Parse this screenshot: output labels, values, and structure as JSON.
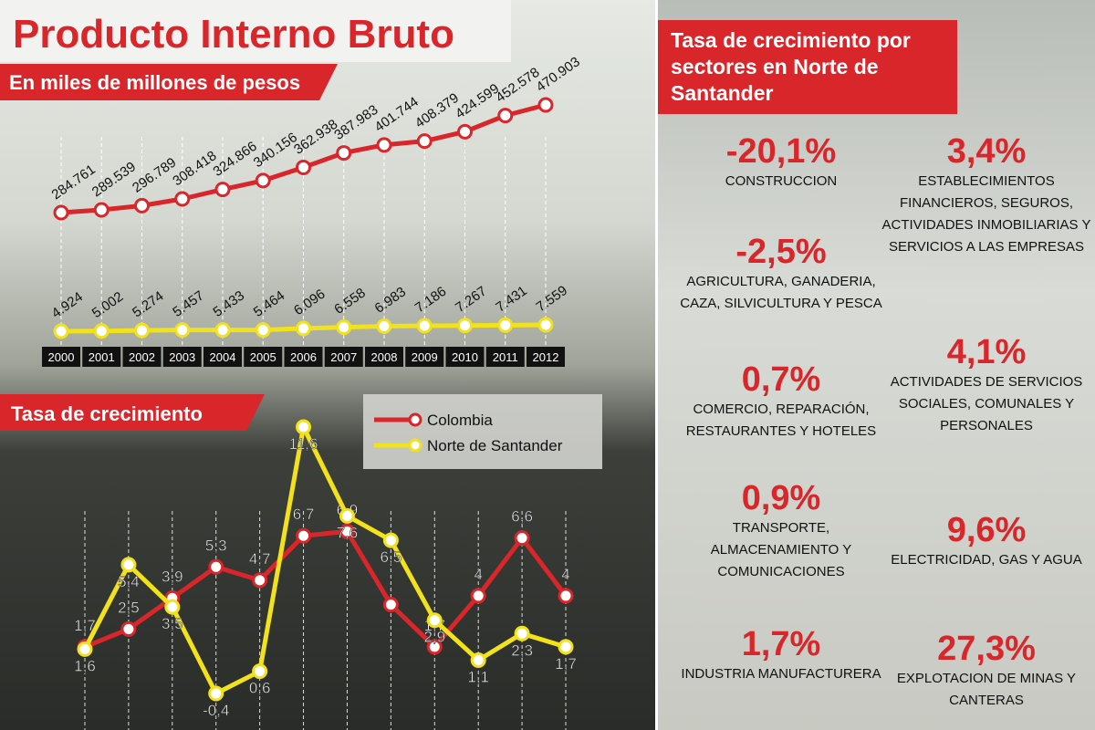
{
  "chart_data": [
    {
      "type": "line",
      "title": "Producto Interno Bruto",
      "subtitle": "En miles de millones de pesos",
      "categories": [
        "2000",
        "2001",
        "2002",
        "2003",
        "2004",
        "2005",
        "2006",
        "2007",
        "2008",
        "2009",
        "2010",
        "2011",
        "2012"
      ],
      "series": [
        {
          "color": "#d9262b",
          "values": [
            284761,
            289539,
            296789,
            308418,
            324866,
            340156,
            362938,
            387983,
            401744,
            408379,
            424599,
            452578,
            470903
          ],
          "value_labels": [
            "284.761",
            "289.539",
            "296.789",
            "308.418",
            "324.866",
            "340.156",
            "362.938",
            "387.983",
            "401.744",
            "408.379",
            "424.599",
            "452.578",
            "470.903"
          ]
        },
        {
          "color": "#f2e21b",
          "values": [
            4924,
            5002,
            5274,
            5457,
            5433,
            5464,
            6096,
            6558,
            6983,
            7186,
            7267,
            7431,
            7559
          ],
          "value_labels": [
            "4.924",
            "5.002",
            "5.274",
            "5.457",
            "5.433",
            "5.464",
            "6.096",
            "6.558",
            "6.983",
            "7.186",
            "7.267",
            "7.431",
            "7.559"
          ]
        }
      ]
    },
    {
      "type": "line",
      "title": "Tasa de crecimiento",
      "categories": [
        null,
        null,
        null,
        null,
        null,
        null,
        null,
        null,
        null,
        null,
        null,
        null
      ],
      "series": [
        {
          "name": "Colombia",
          "color": "#d9262b",
          "values": [
            1.7,
            2.5,
            3.9,
            5.3,
            4.7,
            6.7,
            6.9,
            3.6,
            1.7,
            4,
            6.6,
            4
          ],
          "value_labels": [
            "1,7",
            "2,5",
            "3,9",
            "5,3",
            "4,7",
            "6,7",
            "6,9",
            null,
            "1,7",
            "4",
            "6,6",
            "4"
          ]
        },
        {
          "name": "Norte de Santander",
          "color": "#f2e21b",
          "values": [
            1.6,
            5.4,
            3.5,
            -0.4,
            0.6,
            11.6,
            7.6,
            6.5,
            2.9,
            1.1,
            2.3,
            1.7
          ],
          "value_labels": [
            "1,6",
            "5,4",
            "3,5",
            "-0,4",
            "0,6",
            "11,6",
            "7,6",
            "6,5",
            "2,9",
            "1,1",
            "2,3",
            "1,7"
          ]
        }
      ]
    }
  ],
  "sectors": {
    "title": "Tasa de crecimiento por sectores en Norte de Santander",
    "items": [
      {
        "rate": "-20,1%",
        "label": "CONSTRUCCION"
      },
      {
        "rate": "-2,5%",
        "label": "AGRICULTURA, GANADERIA, CAZA, SILVICULTURA Y PESCA"
      },
      {
        "rate": "0,7%",
        "label": "COMERCIO, REPARACIÓN, RESTAURANTES Y HOTELES"
      },
      {
        "rate": "0,9%",
        "label": "TRANSPORTE, ALMACENAMIENTO Y COMUNICACIONES"
      },
      {
        "rate": "1,7%",
        "label": "INDUSTRIA MANUFACTURERA"
      },
      {
        "rate": "3,4%",
        "label": "ESTABLECIMIENTOS FINANCIEROS, SEGUROS, ACTIVIDADES INMOBILIARIAS Y SERVICIOS A LAS EMPRESAS"
      },
      {
        "rate": "4,1%",
        "label": "ACTIVIDADES DE SERVICIOS SOCIALES, COMUNALES Y PERSONALES"
      },
      {
        "rate": "9,6%",
        "label": "ELECTRICIDAD, GAS Y AGUA"
      },
      {
        "rate": "27,3%",
        "label": "EXPLOTACION DE MINAS Y CANTERAS"
      }
    ]
  }
}
